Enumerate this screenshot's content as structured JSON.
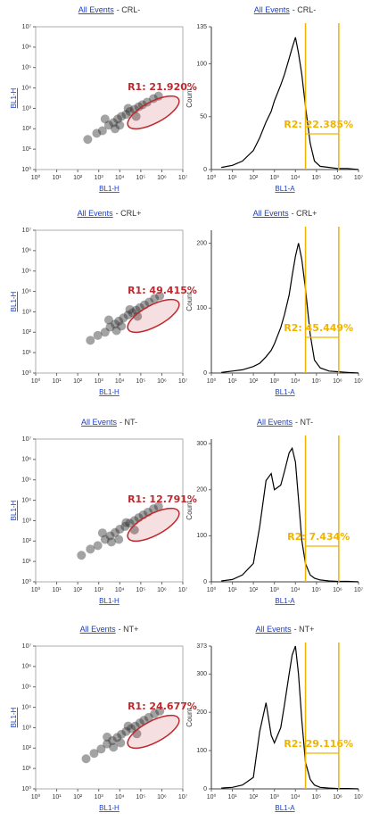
{
  "chart_data": [
    {
      "type": "scatter",
      "title_link": "All Events",
      "title": "- CRL-",
      "x_label": "BL1-H",
      "y_label": "BL1-H",
      "log_scale": true,
      "color": "#333333",
      "x": [
        300,
        800,
        1500,
        3000,
        5000,
        8000,
        12000,
        20000,
        30000,
        50000,
        80000,
        120000,
        200000,
        400000,
        700000,
        2000,
        10000,
        60000,
        6000,
        25000
      ],
      "y": [
        30,
        60,
        80,
        150,
        200,
        300,
        400,
        500,
        700,
        900,
        1200,
        1500,
        2000,
        3000,
        4000,
        300,
        150,
        400,
        100,
        1000
      ],
      "xlim": [
        1,
        10000000
      ],
      "ylim": [
        1,
        10000000
      ],
      "xticks": [
        {
          "value": 1,
          "label": "10⁰"
        },
        {
          "value": 10,
          "label": "10¹"
        },
        {
          "value": 100,
          "label": "10²"
        },
        {
          "value": 1000,
          "label": "10³"
        },
        {
          "value": 10000,
          "label": "10⁴"
        },
        {
          "value": 100000,
          "label": "10⁵"
        },
        {
          "value": 1000000,
          "label": "10⁶"
        },
        {
          "value": 10000000,
          "label": "10⁷"
        }
      ],
      "yticks": [
        {
          "value": 1,
          "label": "10⁰"
        },
        {
          "value": 10,
          "label": "10¹"
        },
        {
          "value": 100,
          "label": "10²"
        },
        {
          "value": 1000,
          "label": "10³"
        },
        {
          "value": 10000,
          "label": "10⁴"
        },
        {
          "value": 100000,
          "label": "10⁵"
        },
        {
          "value": 1000000,
          "label": "10⁶"
        },
        {
          "value": 10000000,
          "label": "10⁷"
        }
      ],
      "gate": {
        "label": "R1: 21.920%",
        "color": "#c0282d"
      }
    },
    {
      "type": "line",
      "title_link": "All Events",
      "title": "- CRL-",
      "x_label": "BL1-A",
      "y_label": "Count",
      "log_scale": true,
      "color": "#000000",
      "x": [
        3,
        10,
        30,
        100,
        200,
        400,
        700,
        1000,
        2000,
        3000,
        5000,
        7000,
        10000,
        14000,
        20000,
        30000,
        50000,
        80000,
        150000,
        400000,
        1000000,
        3000000,
        10000000
      ],
      "values": [
        2,
        4,
        8,
        18,
        30,
        45,
        55,
        65,
        80,
        90,
        105,
        115,
        125,
        110,
        90,
        60,
        25,
        8,
        3,
        2,
        1,
        1,
        0
      ],
      "xlim": [
        1,
        10000000
      ],
      "ylim": [
        0,
        135
      ],
      "xticks": [
        {
          "value": 1,
          "label": "10⁰"
        },
        {
          "value": 10,
          "label": "10¹"
        },
        {
          "value": 100,
          "label": "10²"
        },
        {
          "value": 1000,
          "label": "10³"
        },
        {
          "value": 10000,
          "label": "10⁴"
        },
        {
          "value": 100000,
          "label": "10⁵"
        },
        {
          "value": 1000000,
          "label": "10⁶"
        },
        {
          "value": 10000000,
          "label": "10⁷"
        }
      ],
      "yticks": [
        0,
        50,
        100,
        135
      ],
      "gate": {
        "range": [
          30000,
          1150000
        ],
        "label": "R2: 22.385%",
        "color": "#f0b400"
      }
    },
    {
      "type": "scatter",
      "title_link": "All Events",
      "title": "- CRL+",
      "x_label": "BL1-H",
      "y_label": "BL1-H",
      "log_scale": true,
      "color": "#333333",
      "x": [
        400,
        900,
        2000,
        3500,
        6000,
        9000,
        15000,
        25000,
        40000,
        60000,
        90000,
        150000,
        250000,
        450000,
        800000,
        3000,
        12000,
        70000,
        7000,
        30000
      ],
      "y": [
        40,
        70,
        100,
        180,
        250,
        350,
        500,
        700,
        900,
        1200,
        1600,
        2200,
        3000,
        4500,
        6000,
        400,
        200,
        600,
        120,
        1300
      ],
      "xlim": [
        1,
        10000000
      ],
      "ylim": [
        1,
        10000000
      ],
      "xticks": [
        {
          "value": 1,
          "label": "10⁰"
        },
        {
          "value": 10,
          "label": "10¹"
        },
        {
          "value": 100,
          "label": "10²"
        },
        {
          "value": 1000,
          "label": "10³"
        },
        {
          "value": 10000,
          "label": "10⁴"
        },
        {
          "value": 100000,
          "label": "10⁵"
        },
        {
          "value": 1000000,
          "label": "10⁶"
        },
        {
          "value": 10000000,
          "label": "10⁷"
        }
      ],
      "yticks": [
        {
          "value": 1,
          "label": "10⁰"
        },
        {
          "value": 10,
          "label": "10¹"
        },
        {
          "value": 100,
          "label": "10²"
        },
        {
          "value": 1000,
          "label": "10³"
        },
        {
          "value": 10000,
          "label": "10⁴"
        },
        {
          "value": 100000,
          "label": "10⁵"
        },
        {
          "value": 1000000,
          "label": "10⁶"
        },
        {
          "value": 10000000,
          "label": "10⁷"
        }
      ],
      "gate": {
        "label": "R1: 49.415%",
        "color": "#c0282d"
      }
    },
    {
      "type": "line",
      "title_link": "All Events",
      "title": "- CRL+",
      "x_label": "BL1-A",
      "y_label": "Count",
      "log_scale": true,
      "color": "#000000",
      "x": [
        3,
        10,
        30,
        100,
        200,
        400,
        700,
        1000,
        2000,
        3000,
        5000,
        7000,
        10000,
        14000,
        20000,
        30000,
        50000,
        80000,
        150000,
        400000,
        1000000,
        3000000,
        10000000
      ],
      "values": [
        1,
        3,
        5,
        10,
        15,
        25,
        35,
        45,
        70,
        90,
        120,
        150,
        180,
        200,
        175,
        130,
        60,
        20,
        8,
        3,
        2,
        1,
        0
      ],
      "xlim": [
        1,
        10000000
      ],
      "ylim": [
        0,
        220
      ],
      "xticks": [
        {
          "value": 1,
          "label": "10⁰"
        },
        {
          "value": 10,
          "label": "10¹"
        },
        {
          "value": 100,
          "label": "10²"
        },
        {
          "value": 1000,
          "label": "10³"
        },
        {
          "value": 10000,
          "label": "10⁴"
        },
        {
          "value": 100000,
          "label": "10⁵"
        },
        {
          "value": 1000000,
          "label": "10⁶"
        },
        {
          "value": 10000000,
          "label": "10⁷"
        }
      ],
      "yticks": [
        0,
        100,
        200
      ],
      "gate": {
        "range": [
          30000,
          1150000
        ],
        "label": "R2: 45.449%",
        "color": "#f0b400"
      }
    },
    {
      "type": "scatter",
      "title_link": "All Events",
      "title": "- NT-",
      "x_label": "BL1-H",
      "y_label": "BL1-H",
      "log_scale": true,
      "color": "#333333",
      "x": [
        150,
        400,
        900,
        2000,
        3500,
        6000,
        10000,
        18000,
        30000,
        50000,
        80000,
        130000,
        220000,
        400000,
        700000,
        1500,
        9000,
        50000,
        4000,
        20000
      ],
      "y": [
        20,
        40,
        60,
        120,
        180,
        260,
        380,
        520,
        750,
        1000,
        1400,
        1900,
        2600,
        3800,
        5000,
        250,
        120,
        350,
        90,
        800
      ],
      "xlim": [
        1,
        10000000
      ],
      "ylim": [
        1,
        10000000
      ],
      "xticks": [
        {
          "value": 1,
          "label": "10⁰"
        },
        {
          "value": 10,
          "label": "10¹"
        },
        {
          "value": 100,
          "label": "10²"
        },
        {
          "value": 1000,
          "label": "10³"
        },
        {
          "value": 10000,
          "label": "10⁴"
        },
        {
          "value": 100000,
          "label": "10⁵"
        },
        {
          "value": 1000000,
          "label": "10⁶"
        },
        {
          "value": 10000000,
          "label": "10⁷"
        }
      ],
      "yticks": [
        {
          "value": 1,
          "label": "10⁰"
        },
        {
          "value": 10,
          "label": "10¹"
        },
        {
          "value": 100,
          "label": "10²"
        },
        {
          "value": 1000,
          "label": "10³"
        },
        {
          "value": 10000,
          "label": "10⁴"
        },
        {
          "value": 100000,
          "label": "10⁵"
        },
        {
          "value": 1000000,
          "label": "10⁶"
        },
        {
          "value": 10000000,
          "label": "10⁷"
        }
      ],
      "gate": {
        "label": "R1: 12.791%",
        "color": "#c0282d"
      }
    },
    {
      "type": "line",
      "title_link": "All Events",
      "title": "- NT-",
      "x_label": "BL1-A",
      "y_label": "Count",
      "log_scale": true,
      "color": "#000000",
      "x": [
        3,
        10,
        30,
        100,
        200,
        400,
        700,
        1000,
        2000,
        3000,
        5000,
        7000,
        10000,
        14000,
        20000,
        30000,
        50000,
        80000,
        150000,
        400000,
        1000000,
        3000000,
        10000000
      ],
      "values": [
        2,
        5,
        15,
        40,
        120,
        220,
        235,
        200,
        210,
        240,
        280,
        290,
        260,
        180,
        90,
        40,
        15,
        8,
        4,
        2,
        1,
        1,
        0
      ],
      "xlim": [
        1,
        10000000
      ],
      "ylim": [
        0,
        310
      ],
      "xticks": [
        {
          "value": 1,
          "label": "10⁰"
        },
        {
          "value": 10,
          "label": "10¹"
        },
        {
          "value": 100,
          "label": "10²"
        },
        {
          "value": 1000,
          "label": "10³"
        },
        {
          "value": 10000,
          "label": "10⁴"
        },
        {
          "value": 100000,
          "label": "10⁵"
        },
        {
          "value": 1000000,
          "label": "10⁶"
        },
        {
          "value": 10000000,
          "label": "10⁷"
        }
      ],
      "yticks": [
        0,
        100,
        200,
        300
      ],
      "gate": {
        "range": [
          30000,
          1150000
        ],
        "label": "R2: 7.434%",
        "color": "#f0b400"
      }
    },
    {
      "type": "scatter",
      "title_link": "All Events",
      "title": "- NT+",
      "x_label": "BL1-H",
      "y_label": "BL1-H",
      "log_scale": true,
      "color": "#333333",
      "x": [
        250,
        600,
        1300,
        2500,
        4500,
        7500,
        12000,
        20000,
        35000,
        55000,
        90000,
        140000,
        240000,
        450000,
        800000,
        2500,
        11000,
        65000,
        5000,
        25000
      ],
      "y": [
        30,
        55,
        90,
        160,
        230,
        330,
        470,
        650,
        900,
        1200,
        1700,
        2300,
        3200,
        4800,
        6500,
        350,
        180,
        500,
        110,
        1200
      ],
      "xlim": [
        1,
        10000000
      ],
      "ylim": [
        1,
        10000000
      ],
      "xticks": [
        {
          "value": 1,
          "label": "10⁰"
        },
        {
          "value": 10,
          "label": "10¹"
        },
        {
          "value": 100,
          "label": "10²"
        },
        {
          "value": 1000,
          "label": "10³"
        },
        {
          "value": 10000,
          "label": "10⁴"
        },
        {
          "value": 100000,
          "label": "10⁵"
        },
        {
          "value": 1000000,
          "label": "10⁶"
        },
        {
          "value": 10000000,
          "label": "10⁷"
        }
      ],
      "yticks": [
        {
          "value": 1,
          "label": "10⁰"
        },
        {
          "value": 10,
          "label": "10¹"
        },
        {
          "value": 100,
          "label": "10²"
        },
        {
          "value": 1000,
          "label": "10³"
        },
        {
          "value": 10000,
          "label": "10⁴"
        },
        {
          "value": 100000,
          "label": "10⁵"
        },
        {
          "value": 1000000,
          "label": "10⁶"
        },
        {
          "value": 10000000,
          "label": "10⁷"
        }
      ],
      "gate": {
        "label": "R1: 24.677%",
        "color": "#c0282d"
      }
    },
    {
      "type": "line",
      "title_link": "All Events",
      "title": "- NT+",
      "x_label": "BL1-A",
      "y_label": "Count",
      "log_scale": true,
      "color": "#000000",
      "x": [
        3,
        10,
        30,
        100,
        200,
        400,
        700,
        1000,
        2000,
        3000,
        5000,
        7000,
        10000,
        14000,
        20000,
        30000,
        50000,
        80000,
        150000,
        400000,
        1000000,
        3000000,
        10000000
      ],
      "values": [
        2,
        4,
        10,
        30,
        150,
        225,
        140,
        120,
        160,
        220,
        300,
        350,
        373,
        300,
        180,
        70,
        25,
        10,
        4,
        2,
        1,
        1,
        0
      ],
      "xlim": [
        1,
        10000000
      ],
      "ylim": [
        0,
        373
      ],
      "xticks": [
        {
          "value": 1,
          "label": "10⁰"
        },
        {
          "value": 10,
          "label": "10¹"
        },
        {
          "value": 100,
          "label": "10²"
        },
        {
          "value": 1000,
          "label": "10³"
        },
        {
          "value": 10000,
          "label": "10⁴"
        },
        {
          "value": 100000,
          "label": "10⁵"
        },
        {
          "value": 1000000,
          "label": "10⁶"
        },
        {
          "value": 10000000,
          "label": "10⁷"
        }
      ],
      "yticks": [
        0,
        100,
        200,
        300,
        373
      ],
      "gate": {
        "range": [
          30000,
          1150000
        ],
        "label": "R2: 29.116%",
        "color": "#f0b400"
      }
    }
  ]
}
